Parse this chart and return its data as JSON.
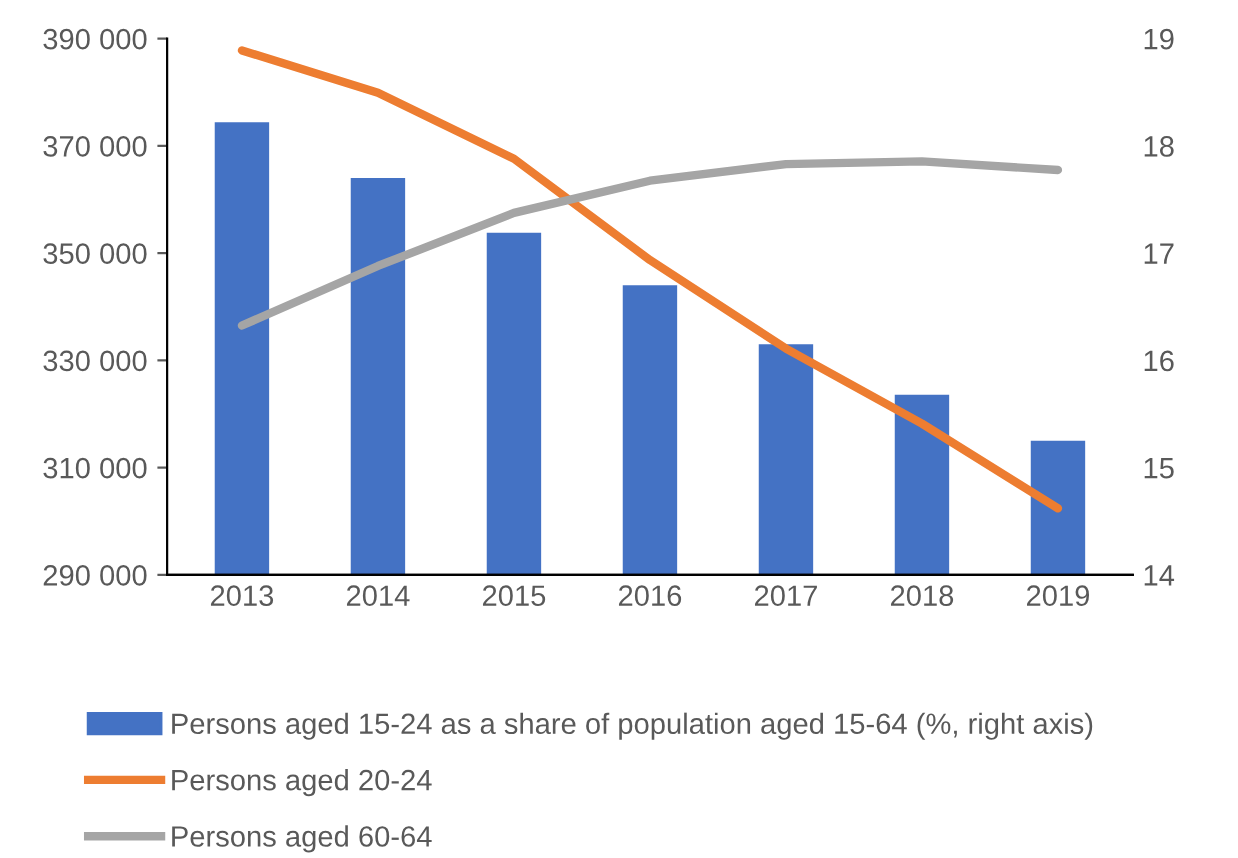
{
  "chart_data": {
    "type": "bar",
    "categories": [
      "2013",
      "2014",
      "2015",
      "2016",
      "2017",
      "2018",
      "2019"
    ],
    "series": [
      {
        "name": "Persons aged 15-24 as a share of population aged 15-64 (%, right axis)",
        "axis": "y2",
        "color": "#4472c4",
        "values": [
          18.22,
          17.7,
          17.19,
          16.7,
          16.15,
          15.68,
          15.25
        ]
      },
      {
        "name": "Persons aged 20-24",
        "type": "line",
        "axis": "y",
        "color": "#ed7d31",
        "values": [
          387800,
          379900,
          367600,
          348700,
          332200,
          318200,
          302400
        ]
      },
      {
        "name": "Persons aged 60-64",
        "type": "line",
        "axis": "y",
        "color": "#a5a5a5",
        "values": [
          336500,
          347600,
          357500,
          363500,
          366600,
          367100,
          365500
        ]
      }
    ],
    "ylim": [
      290000,
      390000
    ],
    "yticks": [
      {
        "value": 290000,
        "label": "290 000"
      },
      {
        "value": 310000,
        "label": "310 000"
      },
      {
        "value": 330000,
        "label": "330 000"
      },
      {
        "value": 350000,
        "label": "350 000"
      },
      {
        "value": 370000,
        "label": "370 000"
      },
      {
        "value": 390000,
        "label": "390 000"
      }
    ],
    "y2lim": [
      14,
      19
    ],
    "y2ticks": [
      14,
      15,
      16,
      17,
      18,
      19
    ],
    "grid": false,
    "legend": "bottom"
  }
}
